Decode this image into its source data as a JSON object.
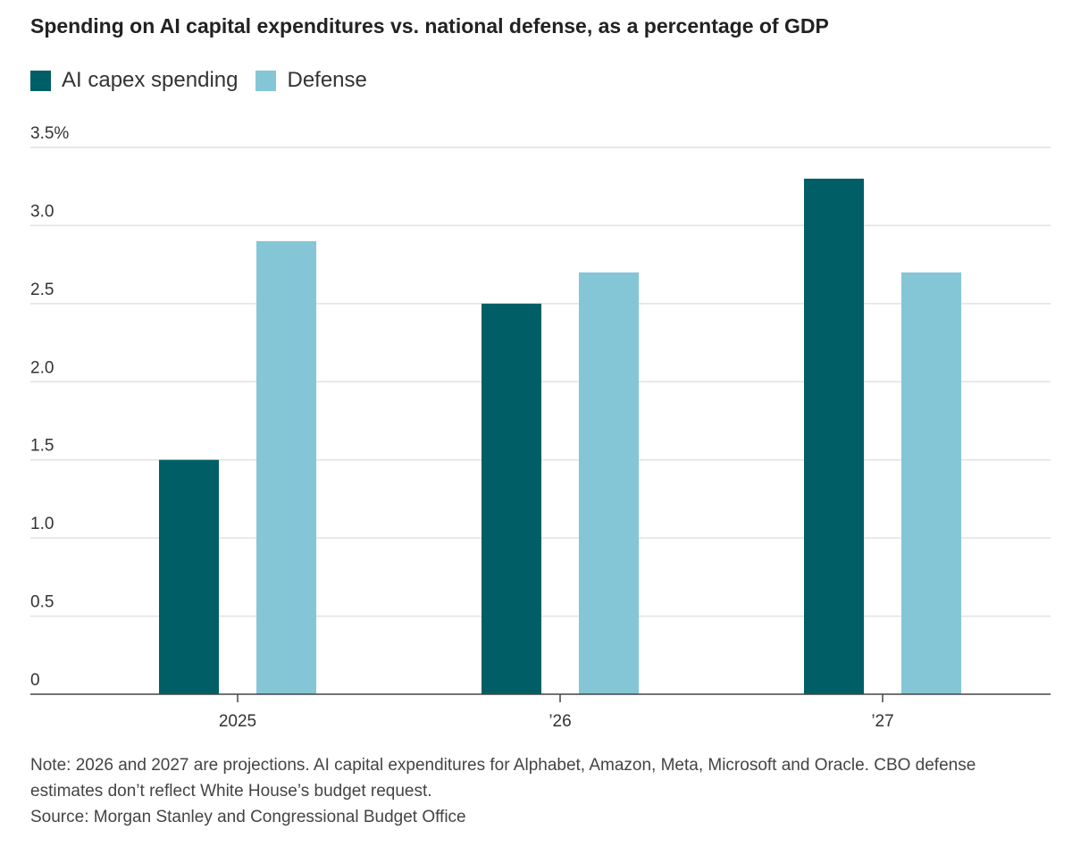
{
  "title": "Spending on AI capital expenditures vs. national defense, as a percentage of GDP",
  "legend": [
    {
      "label": "AI capex spending",
      "color": "#005f66"
    },
    {
      "label": "Defense",
      "color": "#84c6d6"
    }
  ],
  "note": "Note: 2026 and 2027 are projections. AI capital expenditures for Alphabet, Amazon, Meta, Microsoft and Oracle. CBO defense estimates don’t reflect White House’s budget request.",
  "source": "Source: Morgan Stanley and Congressional Budget Office",
  "chart_data": {
    "type": "bar",
    "title": "Spending on AI capital expenditures vs. national defense, as a percentage of GDP",
    "categories": [
      "2025",
      "’26",
      "’27"
    ],
    "series": [
      {
        "name": "AI capex spending",
        "values": [
          1.5,
          2.5,
          3.3
        ],
        "color": "#005f66"
      },
      {
        "name": "Defense",
        "values": [
          2.9,
          2.7,
          2.7
        ],
        "color": "#84c6d6"
      }
    ],
    "ylim": [
      0,
      3.5
    ],
    "yticks": [
      {
        "value": 0,
        "label": "0"
      },
      {
        "value": 0.5,
        "label": "0.5"
      },
      {
        "value": 1.0,
        "label": "1.0"
      },
      {
        "value": 1.5,
        "label": "1.5"
      },
      {
        "value": 2.0,
        "label": "2.0"
      },
      {
        "value": 2.5,
        "label": "2.5"
      },
      {
        "value": 3.0,
        "label": "3.0"
      },
      {
        "value": 3.5,
        "label": "3.5%"
      }
    ],
    "xlabel": "",
    "ylabel": "",
    "grid": true,
    "legend_position": "top-left"
  }
}
